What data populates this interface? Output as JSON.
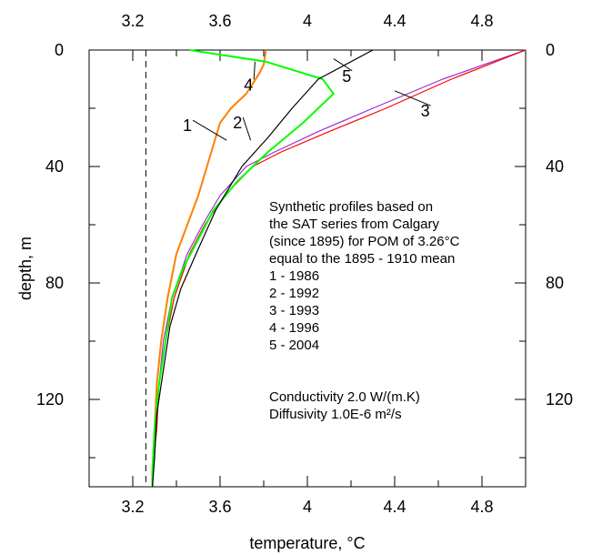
{
  "chart_data": {
    "type": "line",
    "title": "",
    "xlabel": "temperature, °C",
    "ylabel": "depth, m",
    "xlim": [
      3.0,
      5.0
    ],
    "ylim": [
      150,
      0
    ],
    "y_inverted": true,
    "x_ticks_major": [
      "3.2",
      "3.6",
      "4",
      "4.4",
      "4.8"
    ],
    "x_tick_values": [
      3.2,
      3.6,
      4.0,
      4.4,
      4.8
    ],
    "y_ticks_major": [
      "0",
      "40",
      "80",
      "120"
    ],
    "y_tick_values": [
      0,
      40,
      80,
      120
    ],
    "grid": false,
    "reference_line": {
      "x": 3.26,
      "style": "dashed",
      "color": "#000000"
    },
    "series": [
      {
        "name": "1 - 1986",
        "color": "#ff7f00",
        "points": [
          [
            3.81,
            0
          ],
          [
            3.8,
            5
          ],
          [
            3.78,
            8
          ],
          [
            3.72,
            15
          ],
          [
            3.65,
            20
          ],
          [
            3.6,
            25
          ],
          [
            3.56,
            35
          ],
          [
            3.5,
            50
          ],
          [
            3.45,
            60
          ],
          [
            3.4,
            70
          ],
          [
            3.36,
            85
          ],
          [
            3.33,
            100
          ],
          [
            3.31,
            115
          ],
          [
            3.3,
            130
          ],
          [
            3.29,
            145
          ],
          [
            3.29,
            150
          ]
        ]
      },
      {
        "name": "2 - 1992",
        "color": "#9932cc",
        "points": [
          [
            5.0,
            0
          ],
          [
            4.62,
            10
          ],
          [
            4.3,
            20
          ],
          [
            4.05,
            28
          ],
          [
            3.85,
            35
          ],
          [
            3.72,
            40
          ],
          [
            3.6,
            50
          ],
          [
            3.52,
            60
          ],
          [
            3.45,
            70
          ],
          [
            3.38,
            85
          ],
          [
            3.34,
            100
          ],
          [
            3.32,
            115
          ],
          [
            3.3,
            130
          ],
          [
            3.29,
            145
          ],
          [
            3.29,
            150
          ]
        ]
      },
      {
        "name": "3 - 1993",
        "color": "#ff0000",
        "points": [
          [
            5.0,
            0
          ],
          [
            4.66,
            10
          ],
          [
            4.36,
            20
          ],
          [
            4.1,
            28
          ],
          [
            3.88,
            35
          ],
          [
            3.75,
            40
          ],
          [
            3.62,
            50
          ],
          [
            3.53,
            60
          ],
          [
            3.46,
            70
          ],
          [
            3.39,
            85
          ],
          [
            3.35,
            100
          ],
          [
            3.32,
            115
          ],
          [
            3.31,
            130
          ],
          [
            3.29,
            145
          ],
          [
            3.29,
            150
          ]
        ]
      },
      {
        "name": "4 - 1996",
        "color": "#00ff00",
        "points": [
          [
            3.46,
            0
          ],
          [
            3.81,
            4
          ],
          [
            4.07,
            10
          ],
          [
            4.12,
            15
          ],
          [
            3.98,
            25
          ],
          [
            3.82,
            35
          ],
          [
            3.68,
            45
          ],
          [
            3.57,
            55
          ],
          [
            3.5,
            65
          ],
          [
            3.43,
            75
          ],
          [
            3.38,
            85
          ],
          [
            3.35,
            100
          ],
          [
            3.32,
            115
          ],
          [
            3.3,
            130
          ],
          [
            3.29,
            145
          ],
          [
            3.29,
            150
          ]
        ]
      },
      {
        "name": "5 - 2004",
        "color": "#000000",
        "points": [
          [
            4.3,
            0
          ],
          [
            4.05,
            10
          ],
          [
            3.93,
            20
          ],
          [
            3.82,
            30
          ],
          [
            3.7,
            40
          ],
          [
            3.58,
            55
          ],
          [
            3.49,
            70
          ],
          [
            3.42,
            82
          ],
          [
            3.37,
            95
          ],
          [
            3.34,
            110
          ],
          [
            3.31,
            125
          ],
          [
            3.3,
            140
          ],
          [
            3.29,
            150
          ]
        ]
      }
    ],
    "curve_labels": [
      {
        "text": "1",
        "x": 3.45,
        "y": 26,
        "leader_to": [
          3.63,
          31
        ]
      },
      {
        "text": "2",
        "x": 3.68,
        "y": 25,
        "leader_to": [
          3.74,
          31
        ]
      },
      {
        "text": "3",
        "x": 4.54,
        "y": 21,
        "leader_to": [
          4.4,
          14
        ]
      },
      {
        "text": "4",
        "x": 3.73,
        "y": 12,
        "leader_to": [
          3.76,
          4
        ]
      },
      {
        "text": "5",
        "x": 4.18,
        "y": 9,
        "leader_to": [
          4.12,
          3
        ]
      }
    ],
    "annotation_lines": [
      "Synthetic profiles based on",
      "the SAT series from Calgary",
      "(since 1895) for POM of 3.26°C",
      "equal to the 1895 - 1910 mean",
      "1 - 1986",
      "2 - 1992",
      "3 - 1993",
      "4 - 1996",
      "5 - 2004"
    ],
    "properties_lines": [
      "Conductivity 2.0 W/(m.K)",
      "Diffusivity 1.0E-6 m²/s"
    ]
  }
}
